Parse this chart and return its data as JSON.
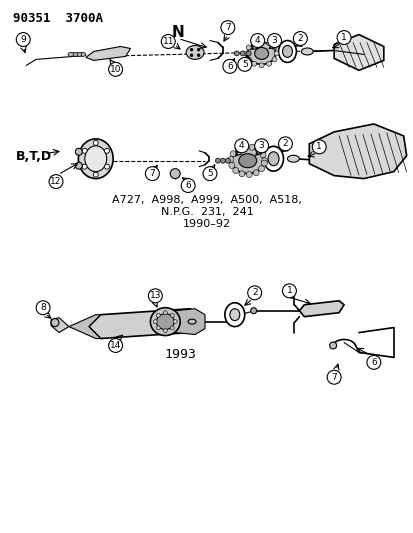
{
  "title": "90351  3700A",
  "bg_color": "#ffffff",
  "lc": "#000000",
  "fig_w": 4.14,
  "fig_h": 5.33,
  "dpi": 100,
  "label_N": "N",
  "label_BTD": "B,T,D",
  "label_model_1": "A727,  A998,  A999,  A500,  A518,",
  "label_model_2": "N.P.G.  231,  241",
  "label_model_3": "1990–92",
  "label_year": "1993"
}
